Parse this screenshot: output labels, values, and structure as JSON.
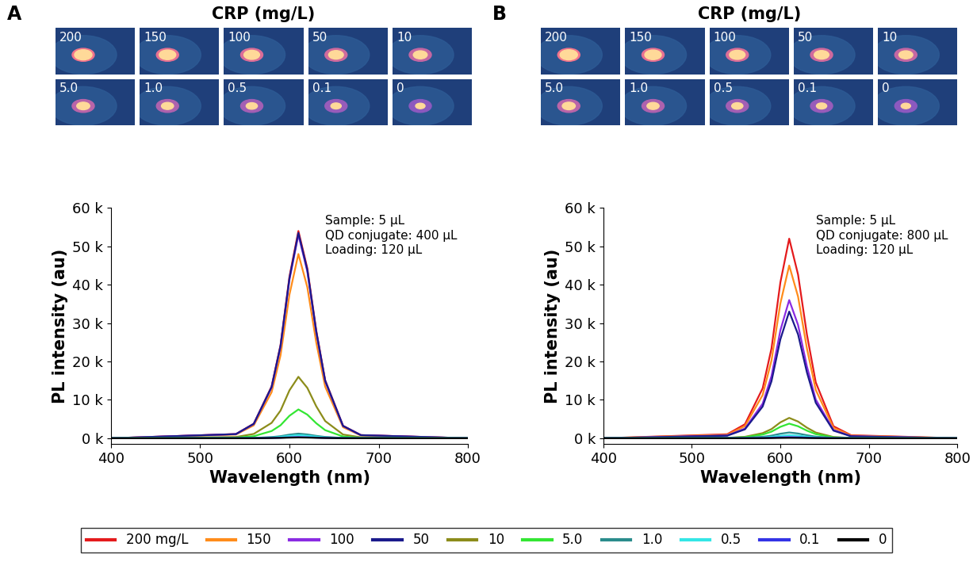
{
  "chart_data": [
    {
      "type": "line",
      "panel": "A",
      "title": "CRP (mg/L)",
      "photo_labels": [
        "200",
        "150",
        "100",
        "50",
        "10",
        "5.0",
        "1.0",
        "0.5",
        "0.1",
        "0"
      ],
      "annotation": "Sample: 5 µL\nQD conjugate: 400 µL\nLoading: 120 µL",
      "x_label": "Wavelength (nm)",
      "y_label": "PL intensity (au)",
      "xlim": [
        400,
        800
      ],
      "xticks": [
        400,
        500,
        600,
        700,
        800
      ],
      "ylim": [
        -1500,
        60000
      ],
      "yticks": [
        {
          "value": 0,
          "label": "0 k"
        },
        {
          "value": 10000,
          "label": "10 k"
        },
        {
          "value": 20000,
          "label": "20 k"
        },
        {
          "value": 30000,
          "label": "30 k"
        },
        {
          "value": 40000,
          "label": "40 k"
        },
        {
          "value": 50000,
          "label": "50 k"
        },
        {
          "value": 60000,
          "label": "60 k"
        }
      ],
      "grid": false,
      "legend": "lower center",
      "x": [
        400,
        540,
        560,
        580,
        590,
        600,
        610,
        620,
        630,
        640,
        660,
        680,
        800
      ],
      "series": [
        {
          "name": "200 mg/L",
          "color": "#e41a1c",
          "values": [
            0,
            1080,
            3780,
            13500,
            24300,
            42120,
            54000,
            44280,
            28080,
            15120,
            3240,
            810,
            0
          ]
        },
        {
          "name": "150",
          "color": "#ff8c1a",
          "values": [
            0,
            960,
            3360,
            12000,
            21600,
            37440,
            48000,
            39360,
            24960,
            13440,
            2880,
            720,
            0
          ]
        },
        {
          "name": "100",
          "color": "#8a2be2",
          "values": [
            0,
            1060,
            3710,
            13250,
            23850,
            41340,
            53000,
            43460,
            27560,
            14840,
            3180,
            795,
            0
          ]
        },
        {
          "name": "50",
          "color": "#1a1a8c",
          "values": [
            0,
            1070,
            3745,
            13375,
            24075,
            41730,
            53500,
            43870,
            27820,
            14980,
            3210,
            803,
            0
          ]
        },
        {
          "name": "10",
          "color": "#8c8c1a",
          "values": [
            0,
            320,
            1120,
            4000,
            7200,
            12480,
            16000,
            13120,
            8320,
            4480,
            960,
            240,
            0
          ]
        },
        {
          "name": "5.0",
          "color": "#33e633",
          "values": [
            0,
            150,
            525,
            1875,
            3375,
            5850,
            7500,
            6150,
            3900,
            2100,
            450,
            113,
            0
          ]
        },
        {
          "name": "1.0",
          "color": "#2a8c8c",
          "values": [
            0,
            24,
            84,
            300,
            540,
            936,
            1200,
            984,
            624,
            336,
            72,
            18,
            0
          ]
        },
        {
          "name": "0.5",
          "color": "#33e6e6",
          "values": [
            0,
            16,
            56,
            200,
            360,
            624,
            800,
            656,
            416,
            224,
            48,
            12,
            0
          ]
        },
        {
          "name": "0.1",
          "color": "#3333e6",
          "values": [
            0,
            6,
            21,
            75,
            135,
            234,
            300,
            246,
            156,
            84,
            18,
            5,
            0
          ]
        },
        {
          "name": "0",
          "color": "#000000",
          "values": [
            0,
            4,
            14,
            50,
            90,
            156,
            200,
            164,
            104,
            56,
            12,
            3,
            0
          ]
        }
      ]
    },
    {
      "type": "line",
      "panel": "B",
      "title": "CRP (mg/L)",
      "photo_labels": [
        "200",
        "150",
        "100",
        "50",
        "10",
        "5.0",
        "1.0",
        "0.5",
        "0.1",
        "0"
      ],
      "annotation": "Sample: 5 µL\nQD conjugate: 800 µL\nLoading: 120 µL",
      "x_label": "Wavelength (nm)",
      "y_label": "PL intensity (au)",
      "xlim": [
        400,
        800
      ],
      "xticks": [
        400,
        500,
        600,
        700,
        800
      ],
      "ylim": [
        -1500,
        60000
      ],
      "yticks": [
        {
          "value": 0,
          "label": "0 k"
        },
        {
          "value": 10000,
          "label": "10 k"
        },
        {
          "value": 20000,
          "label": "20 k"
        },
        {
          "value": 30000,
          "label": "30 k"
        },
        {
          "value": 40000,
          "label": "40 k"
        },
        {
          "value": 50000,
          "label": "50 k"
        },
        {
          "value": 60000,
          "label": "60 k"
        }
      ],
      "grid": false,
      "x": [
        400,
        540,
        560,
        580,
        590,
        600,
        610,
        620,
        630,
        640,
        660,
        680,
        800
      ],
      "series": [
        {
          "name": "200 mg/L",
          "color": "#e41a1c",
          "values": [
            0,
            1040,
            3640,
            13000,
            23400,
            40560,
            52000,
            42640,
            27040,
            14560,
            3120,
            780,
            0
          ]
        },
        {
          "name": "150",
          "color": "#ff8c1a",
          "values": [
            0,
            900,
            3150,
            11250,
            20250,
            35100,
            45000,
            36900,
            23400,
            12600,
            2700,
            675,
            0
          ]
        },
        {
          "name": "100",
          "color": "#8a2be2",
          "values": [
            0,
            720,
            2520,
            9000,
            16200,
            28080,
            36000,
            29520,
            18720,
            10080,
            2160,
            540,
            0
          ]
        },
        {
          "name": "50",
          "color": "#1a1a8c",
          "values": [
            0,
            660,
            2310,
            8250,
            14850,
            25740,
            33000,
            27060,
            17160,
            9240,
            1980,
            495,
            0
          ]
        },
        {
          "name": "10",
          "color": "#8c8c1a",
          "values": [
            0,
            106,
            371,
            1325,
            2385,
            4134,
            5300,
            4346,
            2756,
            1484,
            318,
            80,
            0
          ]
        },
        {
          "name": "5.0",
          "color": "#33e633",
          "values": [
            0,
            76,
            266,
            950,
            1710,
            2964,
            3800,
            3116,
            1976,
            1064,
            228,
            57,
            0
          ]
        },
        {
          "name": "1.0",
          "color": "#2a8c8c",
          "values": [
            0,
            30,
            105,
            375,
            675,
            1170,
            1500,
            1230,
            780,
            420,
            90,
            23,
            0
          ]
        },
        {
          "name": "0.5",
          "color": "#33e6e6",
          "values": [
            0,
            16,
            56,
            200,
            360,
            624,
            800,
            656,
            416,
            224,
            48,
            12,
            0
          ]
        },
        {
          "name": "0.1",
          "color": "#3333e6",
          "values": [
            0,
            6,
            21,
            75,
            135,
            234,
            300,
            246,
            156,
            84,
            18,
            5,
            0
          ]
        },
        {
          "name": "0",
          "color": "#000000",
          "values": [
            0,
            2,
            7,
            25,
            45,
            78,
            100,
            82,
            52,
            28,
            6,
            2,
            0
          ]
        }
      ]
    }
  ]
}
